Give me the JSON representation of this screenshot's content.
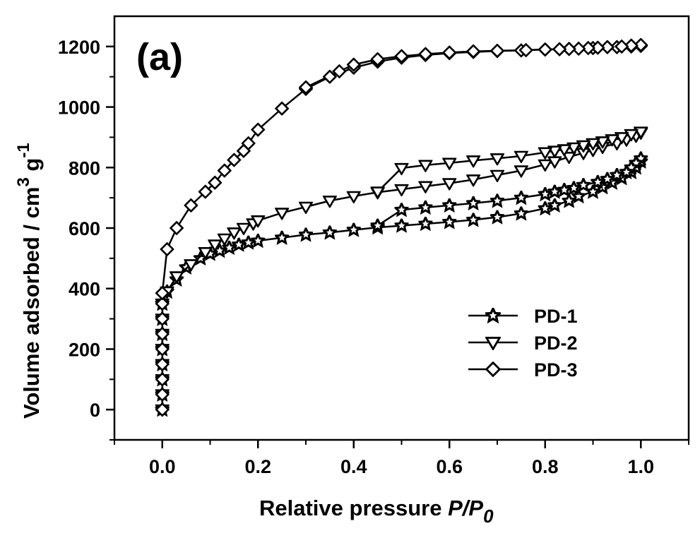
{
  "chart_data": {
    "type": "line",
    "panel_label": "(a)",
    "title": "",
    "xlabel": "Relative pressure P/P0",
    "xlabel_parts": {
      "main": "Relative pressure ",
      "italic": "P",
      "slash": "/",
      "italic2": "P",
      "sub": "0"
    },
    "ylabel": "Volume adsorbed / cm3 g-1",
    "ylabel_parts": {
      "main": "Volume adsorbed / cm",
      "sup1": "3",
      "mid": " g",
      "sup2": "-1"
    },
    "xlim": [
      -0.1,
      1.1
    ],
    "ylim": [
      -100,
      1300
    ],
    "xticks": [
      0.0,
      0.2,
      0.4,
      0.6,
      0.8,
      1.0
    ],
    "xtick_labels": [
      "0.0",
      "0.2",
      "0.4",
      "0.6",
      "0.8",
      "1.0"
    ],
    "xminor": [
      -0.1,
      0.1,
      0.3,
      0.5,
      0.7,
      0.9,
      1.1
    ],
    "yticks": [
      0,
      200,
      400,
      600,
      800,
      1000,
      1200
    ],
    "ytick_labels": [
      "0",
      "200",
      "400",
      "600",
      "800",
      "1000",
      "1200"
    ],
    "yminor": [
      -100,
      100,
      300,
      500,
      700,
      900,
      1100
    ],
    "grid": false,
    "legend": {
      "position": "center-right",
      "entries": [
        "PD-1",
        "PD-2",
        "PD-3"
      ]
    },
    "series": [
      {
        "name": "PD-1",
        "marker": "star",
        "adsorption": {
          "x": [
            0.0,
            0.0,
            0.0,
            0.0,
            0.0,
            0.0,
            0.0,
            0.0,
            0.01,
            0.03,
            0.05,
            0.08,
            0.1,
            0.12,
            0.14,
            0.16,
            0.18,
            0.2,
            0.25,
            0.3,
            0.35,
            0.4,
            0.45,
            0.5,
            0.55,
            0.6,
            0.65,
            0.7,
            0.75,
            0.8,
            0.82,
            0.85,
            0.87,
            0.9,
            0.92,
            0.94,
            0.96,
            0.98,
            0.99,
            1.0
          ],
          "y": [
            0,
            50,
            100,
            150,
            200,
            250,
            300,
            350,
            390,
            430,
            470,
            500,
            515,
            525,
            535,
            545,
            552,
            558,
            568,
            578,
            585,
            594,
            602,
            608,
            614,
            620,
            627,
            636,
            648,
            665,
            675,
            690,
            705,
            720,
            735,
            750,
            765,
            785,
            800,
            820
          ]
        },
        "desorption": {
          "x": [
            1.0,
            0.99,
            0.98,
            0.97,
            0.95,
            0.93,
            0.91,
            0.88,
            0.86,
            0.84,
            0.82,
            0.8,
            0.75,
            0.7,
            0.65,
            0.6,
            0.55,
            0.5,
            0.45
          ],
          "y": [
            830,
            815,
            800,
            785,
            775,
            762,
            752,
            742,
            732,
            726,
            720,
            712,
            700,
            690,
            682,
            675,
            668,
            660,
            608
          ]
        }
      },
      {
        "name": "PD-2",
        "marker": "triangle-down",
        "adsorption": {
          "x": [
            0.0,
            0.0,
            0.0,
            0.0,
            0.0,
            0.0,
            0.0,
            0.0,
            0.01,
            0.03,
            0.06,
            0.09,
            0.11,
            0.13,
            0.15,
            0.17,
            0.19,
            0.2,
            0.25,
            0.3,
            0.35,
            0.4,
            0.45,
            0.5,
            0.55,
            0.6,
            0.65,
            0.7,
            0.75,
            0.8,
            0.82,
            0.85,
            0.88,
            0.9,
            0.92,
            0.95,
            0.97,
            0.99,
            1.0
          ],
          "y": [
            0,
            50,
            100,
            150,
            200,
            250,
            300,
            350,
            390,
            440,
            480,
            520,
            545,
            565,
            585,
            600,
            615,
            625,
            650,
            670,
            690,
            705,
            718,
            728,
            738,
            748,
            760,
            775,
            790,
            810,
            820,
            835,
            848,
            858,
            868,
            880,
            892,
            905,
            915
          ]
        },
        "desorption": {
          "x": [
            1.0,
            0.98,
            0.96,
            0.94,
            0.92,
            0.9,
            0.88,
            0.86,
            0.84,
            0.82,
            0.8,
            0.75,
            0.7,
            0.65,
            0.6,
            0.55,
            0.5,
            0.45
          ],
          "y": [
            918,
            910,
            900,
            893,
            886,
            880,
            873,
            866,
            860,
            855,
            850,
            838,
            830,
            823,
            815,
            808,
            798,
            720
          ]
        }
      },
      {
        "name": "PD-3",
        "marker": "diamond",
        "adsorption": {
          "x": [
            0.0,
            0.0,
            0.0,
            0.0,
            0.0,
            0.0,
            0.0,
            0.0,
            0.0,
            0.01,
            0.03,
            0.06,
            0.09,
            0.11,
            0.13,
            0.15,
            0.17,
            0.18,
            0.2,
            0.25,
            0.3,
            0.35,
            0.4,
            0.45,
            0.5,
            0.55,
            0.6,
            0.65,
            0.7,
            0.75,
            0.8,
            0.85,
            0.9,
            0.95,
            0.98,
            1.0
          ],
          "y": [
            0,
            50,
            100,
            150,
            200,
            250,
            300,
            350,
            385,
            530,
            600,
            675,
            720,
            750,
            790,
            825,
            855,
            880,
            925,
            995,
            1060,
            1100,
            1130,
            1150,
            1163,
            1172,
            1178,
            1182,
            1185,
            1187,
            1190,
            1192,
            1195,
            1198,
            1200,
            1202
          ]
        },
        "desorption": {
          "x": [
            1.0,
            0.98,
            0.96,
            0.93,
            0.91,
            0.89,
            0.87,
            0.85,
            0.83,
            0.8,
            0.76,
            0.7,
            0.65,
            0.6,
            0.55,
            0.5,
            0.45,
            0.4,
            0.37,
            0.3
          ],
          "y": [
            1205,
            1203,
            1200,
            1198,
            1196,
            1195,
            1193,
            1192,
            1191,
            1190,
            1188,
            1186,
            1184,
            1180,
            1175,
            1168,
            1158,
            1140,
            1118,
            1065
          ]
        }
      }
    ]
  }
}
